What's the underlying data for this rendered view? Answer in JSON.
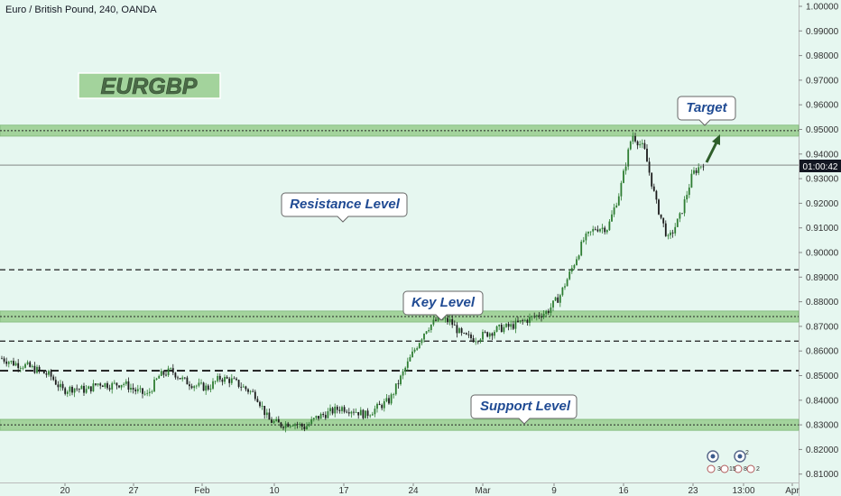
{
  "header": {
    "instrument": "Euro / British Pound, 240, OANDA"
  },
  "badge": {
    "label": "EURGBP"
  },
  "price_tag": {
    "label": "01:00:42"
  },
  "icons": [
    "settings-icon",
    "alert-icon"
  ],
  "icon_counts": {
    "a": "3",
    "b": "15",
    "c": "8",
    "d": "2",
    "e": "2"
  },
  "colors": {
    "background": "#e6f7f0",
    "zone_fill": "#a3d39c",
    "up": "#2e7d32",
    "down": "#1b1b1b",
    "callout_text": "#1f4a93",
    "arrow": "#2e5e2a"
  },
  "chart_data": {
    "type": "candlestick",
    "y_ticks": [
      "1.00000",
      "0.99000",
      "0.98000",
      "0.97000",
      "0.96000",
      "0.95000",
      "0.94000",
      "0.93000",
      "0.92000",
      "0.91000",
      "0.90000",
      "0.89000",
      "0.88000",
      "0.87000",
      "0.86000",
      "0.85000",
      "0.84000",
      "0.83000",
      "0.82000",
      "0.81000"
    ],
    "x_ticks": [
      "20",
      "27",
      "Feb",
      "10",
      "17",
      "24",
      "Mar",
      "9",
      "16",
      "23",
      "13:00",
      "Apr"
    ],
    "ylim": [
      0.805,
      1.0
    ],
    "current_price": 0.9355,
    "series": [
      {
        "values": [
          0.857,
          0.855,
          0.854,
          0.852,
          0.85,
          0.844,
          0.845,
          0.844,
          0.847,
          0.846,
          0.847,
          0.844,
          0.842,
          0.85,
          0.852,
          0.848,
          0.846,
          0.845,
          0.849,
          0.848,
          0.845,
          0.842,
          0.832,
          0.83,
          0.831,
          0.829,
          0.833,
          0.835,
          0.837,
          0.836,
          0.834,
          0.837,
          0.84,
          0.85,
          0.86,
          0.869,
          0.873,
          0.872,
          0.866,
          0.865,
          0.867,
          0.869,
          0.87,
          0.872,
          0.874,
          0.876,
          0.882,
          0.893,
          0.905,
          0.91,
          0.91,
          0.925,
          0.948,
          0.942,
          0.92,
          0.905,
          0.915,
          0.932,
          0.937
        ]
      }
    ],
    "zones": [
      {
        "name": "Target",
        "from": 0.948,
        "to": 0.951
      },
      {
        "name": "Key Level",
        "from": 0.8725,
        "to": 0.8755
      },
      {
        "name": "Support Level",
        "from": 0.8285,
        "to": 0.8315
      }
    ],
    "levels": [
      {
        "value": 0.893,
        "style": "dashed"
      },
      {
        "value": 0.864,
        "style": "dashed"
      },
      {
        "value": 0.852,
        "style": "dashed"
      }
    ],
    "callouts": [
      {
        "label": "Target"
      },
      {
        "label": "Resistance Level"
      },
      {
        "label": "Key Level"
      },
      {
        "label": "Support Level"
      }
    ]
  }
}
